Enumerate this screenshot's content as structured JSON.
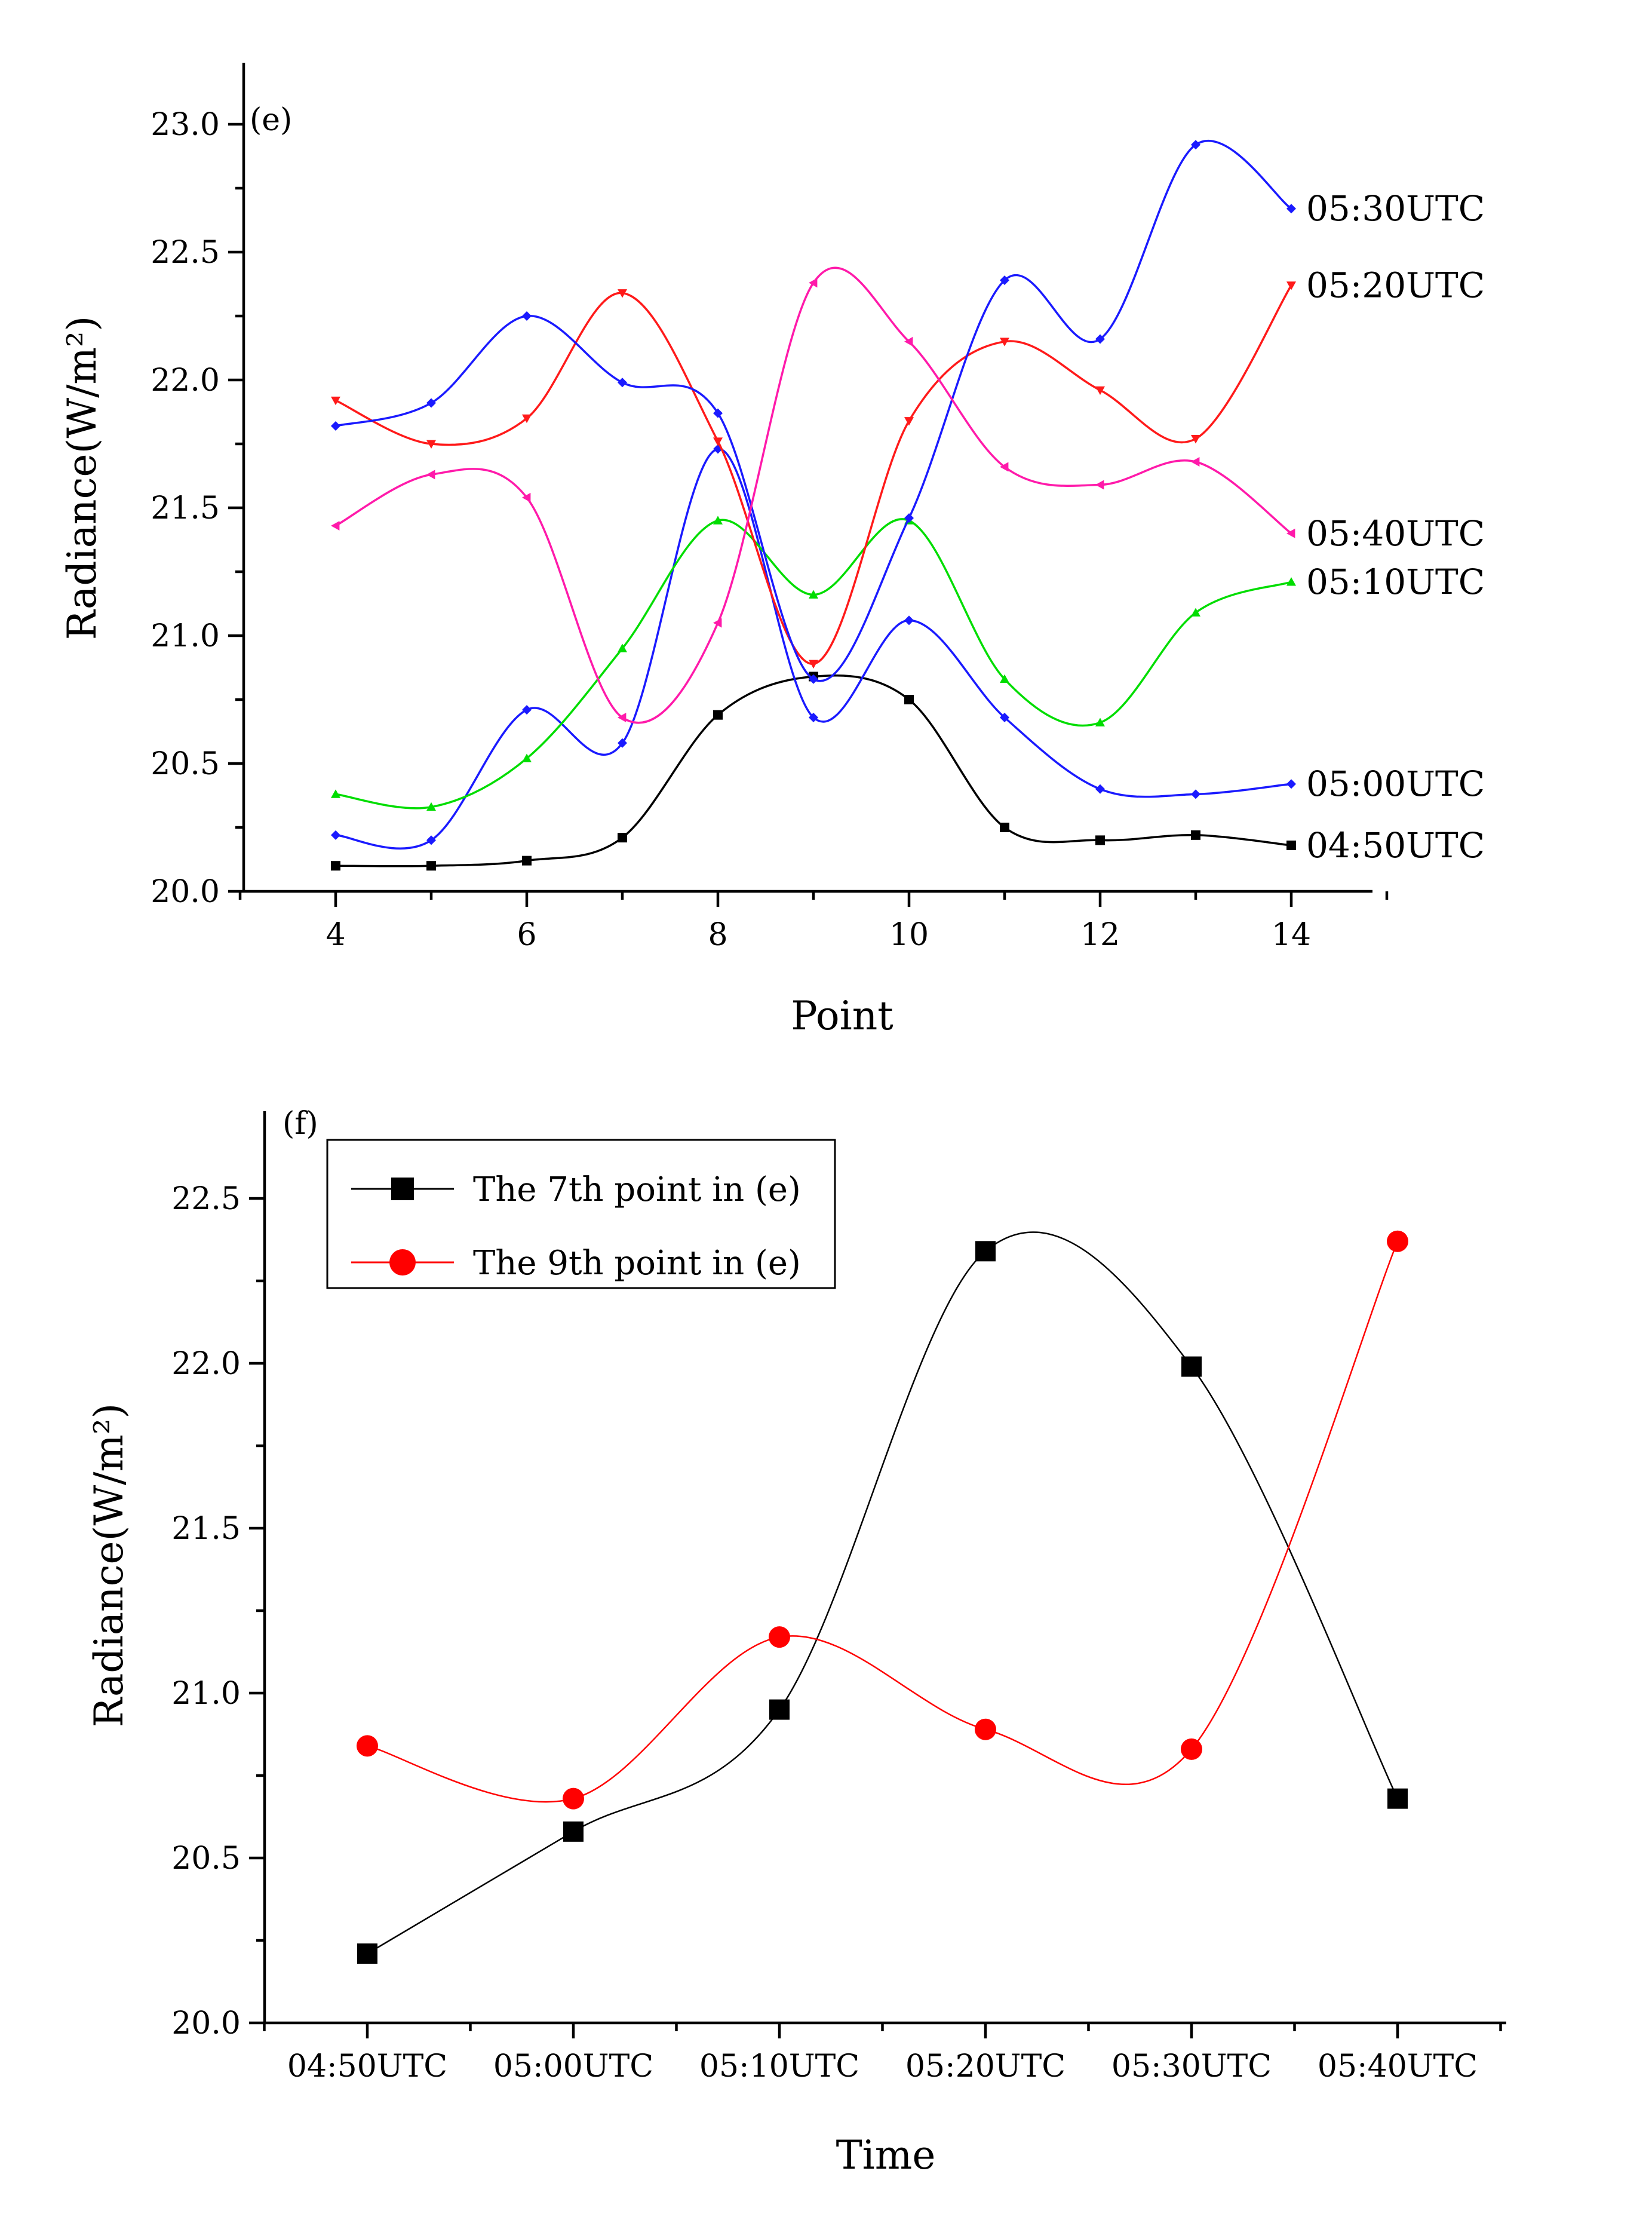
{
  "chart_data": [
    {
      "type": "line",
      "panel_label": "(e)",
      "xlabel": "Point",
      "ylabel": "Radiance(W/m²)",
      "xlim": [
        3,
        15
      ],
      "ylim": [
        20.0,
        23.25
      ],
      "xticks": [
        4,
        6,
        8,
        10,
        12,
        14
      ],
      "xtick_labels": [
        "4",
        "6",
        "8",
        "10",
        "12",
        "14"
      ],
      "yticks": [
        20.0,
        20.5,
        21.0,
        21.5,
        22.0,
        22.5,
        23.0
      ],
      "ytick_labels": [
        "20.0",
        "20.5",
        "21.0",
        "21.5",
        "22.0",
        "22.5",
        "23.0"
      ],
      "x": [
        4,
        5,
        6,
        7,
        8,
        9,
        10,
        11,
        12,
        13,
        14
      ],
      "series": [
        {
          "name": "04:50UTC",
          "color": "#000000",
          "marker": "square",
          "values": [
            20.1,
            20.1,
            20.12,
            20.21,
            20.69,
            20.84,
            20.75,
            20.25,
            20.2,
            20.22,
            20.18
          ]
        },
        {
          "name": "05:00UTC",
          "color": "#1a1aff",
          "marker": "diamond",
          "values": [
            20.22,
            20.2,
            20.71,
            20.58,
            21.73,
            20.68,
            21.06,
            20.68,
            20.4,
            20.38,
            20.42
          ]
        },
        {
          "name": "05:10UTC",
          "color": "#00dd00",
          "marker": "triangle-up",
          "values": [
            20.38,
            20.33,
            20.52,
            20.95,
            21.45,
            21.16,
            21.45,
            20.83,
            20.66,
            21.09,
            21.21
          ]
        },
        {
          "name": "05:20UTC",
          "color": "#ff1a1a",
          "marker": "triangle-down",
          "values": [
            21.92,
            21.75,
            21.85,
            22.34,
            21.76,
            20.89,
            21.84,
            22.15,
            21.96,
            21.77,
            22.37
          ]
        },
        {
          "name": "05:30UTC",
          "color": "#1a1aff",
          "marker": "diamond",
          "values": [
            21.82,
            21.91,
            22.25,
            21.99,
            21.87,
            20.83,
            21.46,
            22.39,
            22.16,
            22.92,
            22.67
          ]
        },
        {
          "name": "05:40UTC",
          "color": "#ff1aaa",
          "marker": "triangle-left",
          "values": [
            21.43,
            21.63,
            21.54,
            20.68,
            21.05,
            22.38,
            22.15,
            21.66,
            21.59,
            21.68,
            21.4
          ]
        }
      ]
    },
    {
      "type": "line",
      "panel_label": "(f)",
      "xlabel": "Time",
      "ylabel": "Radiance(W/m²)",
      "ylim": [
        20.0,
        22.75
      ],
      "categories": [
        "04:50UTC",
        "05:00UTC",
        "05:10UTC",
        "05:20UTC",
        "05:30UTC",
        "05:40UTC"
      ],
      "yticks": [
        20.0,
        20.5,
        21.0,
        21.5,
        22.0,
        22.5
      ],
      "ytick_labels": [
        "20.0",
        "20.5",
        "21.0",
        "21.5",
        "22.0",
        "22.5"
      ],
      "legend_position": "top-left",
      "series": [
        {
          "name": "The 7th point in (e)",
          "color": "#000000",
          "marker": "square",
          "values": [
            20.21,
            20.58,
            20.95,
            22.34,
            21.99,
            20.68
          ]
        },
        {
          "name": "The 9th point in (e)",
          "color": "#ff0000",
          "marker": "circle",
          "values": [
            20.84,
            20.68,
            21.17,
            20.89,
            20.83,
            22.37
          ]
        }
      ]
    }
  ]
}
